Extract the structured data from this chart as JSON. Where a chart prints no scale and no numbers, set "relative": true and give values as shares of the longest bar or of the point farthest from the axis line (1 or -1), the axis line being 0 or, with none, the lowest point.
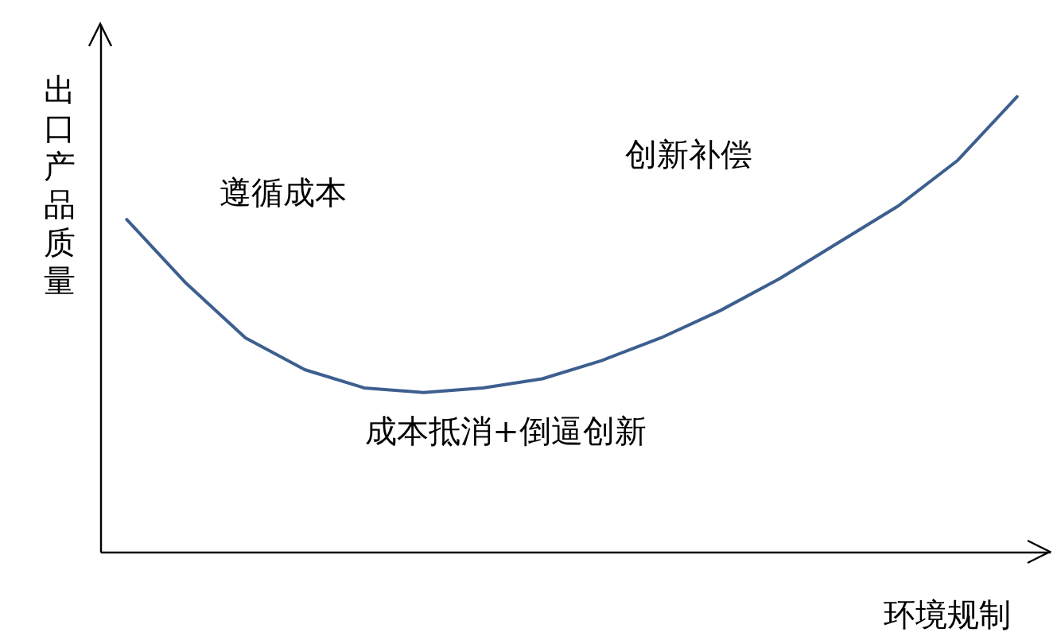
{
  "chart_data": {
    "type": "line",
    "relative": true,
    "ylabel": "出口产品质量",
    "xlabel": "环境规制",
    "annotations": [
      "遵循成本",
      "创新补偿",
      "成本抵消+倒逼创新"
    ],
    "categories": [
      null,
      null,
      null,
      null,
      null,
      null,
      null,
      null,
      null,
      null,
      null,
      null,
      null,
      null,
      null,
      null
    ],
    "series": [
      {
        "color": "#3d5f8f",
        "values": [
          0.73,
          0.59,
          0.47,
          0.4,
          0.36,
          0.35,
          0.36,
          0.38,
          0.42,
          0.47,
          0.53,
          0.6,
          0.68,
          0.76,
          0.86,
          1
        ]
      }
    ],
    "grid": false,
    "marker": "none",
    "line_style": "solid"
  }
}
